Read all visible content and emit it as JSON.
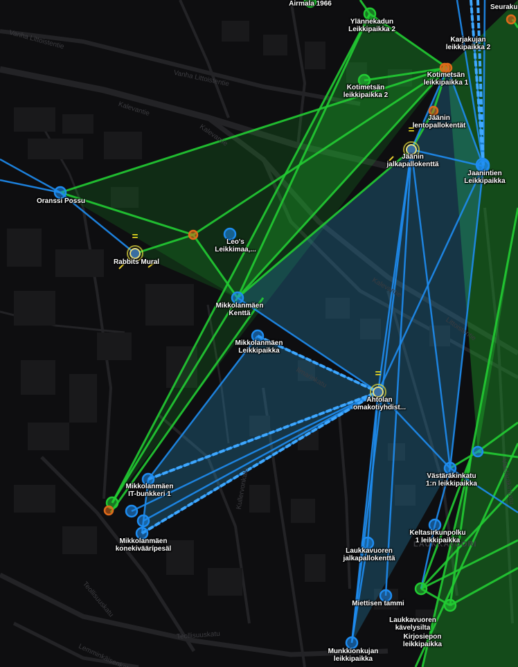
{
  "colors": {
    "green": "#22cc33",
    "blue": "#1e8cf0",
    "cyan": "#38b6e0",
    "resistance": "#1e8cf0",
    "enlightened": "#22cc33",
    "neutral": "#e8e040",
    "unclaimed": "#e06a1a"
  },
  "portals": [
    {
      "id": "airmala",
      "label": "Airmala 1966"
    },
    {
      "id": "ylannekadun",
      "label": "Ylännekadun\nLeikkipaikka 2"
    },
    {
      "id": "seurak",
      "label": "Seuraku"
    },
    {
      "id": "karjakujan",
      "label": "Karjakujan\nleikkipaikka 2"
    },
    {
      "id": "kotimetsan1",
      "label": "Kotimetsän\nleikkipaikka 1"
    },
    {
      "id": "kotimetsan2",
      "label": "Kotimetsän\nleikkipaikka 2"
    },
    {
      "id": "jaaninlento",
      "label": "Jäänin\nlentopallokentät"
    },
    {
      "id": "jaaninjalka",
      "label": "Jäänin\njalkapallokenttä"
    },
    {
      "id": "jaanintien",
      "label": "Jaanintien\nLeikkipaikka"
    },
    {
      "id": "oranssi",
      "label": "Oranssi Possu"
    },
    {
      "id": "leos",
      "label": "Leo's\nLeikkimaa,..."
    },
    {
      "id": "rabbits",
      "label": "Rabbits Mural"
    },
    {
      "id": "mikkkentta",
      "label": "Mikkolanmäen\nKenttä"
    },
    {
      "id": "mikkleikki",
      "label": "Mikkolanmäen\nLeikkipaikka"
    },
    {
      "id": "ahtolan",
      "label": "Ahtolan\nomakotiyhdist..."
    },
    {
      "id": "mikkit",
      "label": "Mikkolanmäen\nIT-bunkkeri 1"
    },
    {
      "id": "mikkkone",
      "label": "Mikkolanmäen\nkonekiväärípesäl"
    },
    {
      "id": "vastara",
      "label": "Västäräkinkatu\n1:n leikkipaikka"
    },
    {
      "id": "keltasirkun",
      "label": "Keltasirkunpolku\n1 leikkipaikka"
    },
    {
      "id": "laukkajalka",
      "label": "Laukkavuoren\njalkapallokenttä"
    },
    {
      "id": "miettisen",
      "label": "Miettisen tammi"
    },
    {
      "id": "laukkakavely",
      "label": "Laukkavuoren\nkävelysilta"
    },
    {
      "id": "kirjosiepon",
      "label": "Kirjosiepon\nleikkipaikka"
    },
    {
      "id": "munkkion",
      "label": "Munkkionkujan\nleikkipaikka"
    }
  ],
  "streets": [
    {
      "id": "vanha-littoistentie-1",
      "label": "Vanha Littoistentie"
    },
    {
      "id": "vanha-littoistentie-2",
      "label": "Vanha Littoistentie"
    },
    {
      "id": "kalevantie-1",
      "label": "Kalevantie"
    },
    {
      "id": "kalevantie-2",
      "label": "Kalevantie"
    },
    {
      "id": "kalevantie-3",
      "label": "Kalevantie"
    },
    {
      "id": "littoistentie",
      "label": "Littoistentie"
    },
    {
      "id": "teollisuuskatu-1",
      "label": "Teollisuuskatu"
    },
    {
      "id": "teollisuuskatu-2",
      "label": "Teollisuuskatu"
    },
    {
      "id": "lemminkaisenkatu",
      "label": "Lemminkäisenkatu"
    },
    {
      "id": "kullervonkatu",
      "label": "Kullervonkatu"
    },
    {
      "id": "ilmarinkatu",
      "label": "Ilmarinkatu"
    },
    {
      "id": "vastarakinkatu",
      "label": "Västäräkinkatu"
    }
  ],
  "district": "LAUKKAVUORI",
  "markers": [
    "=",
    "=",
    "=",
    "="
  ]
}
